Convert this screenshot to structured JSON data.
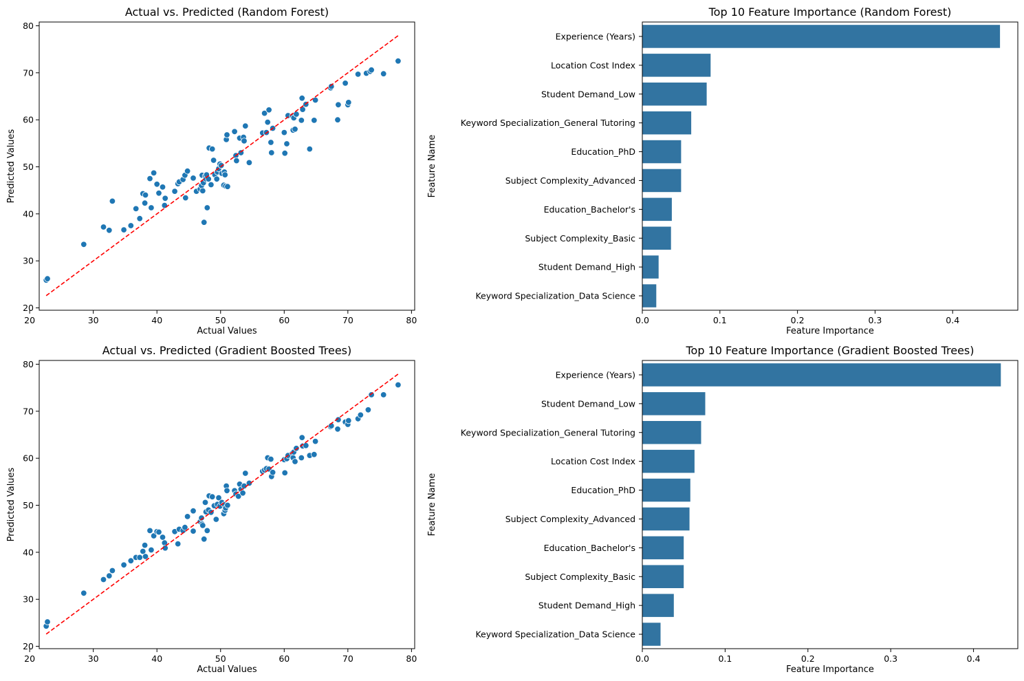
{
  "chart_data": [
    {
      "type": "scatter",
      "title": "Actual vs. Predicted (Random Forest)",
      "xlabel": "Actual Values",
      "ylabel": "Predicted Values",
      "xlim": [
        21.5,
        80.5
      ],
      "ylim": [
        19.5,
        80.8
      ],
      "xticks": [
        20,
        30,
        40,
        50,
        60,
        70,
        80
      ],
      "yticks": [
        20,
        30,
        40,
        50,
        60,
        70,
        80
      ],
      "color": "#1f77b4",
      "reference_line": {
        "x": [
          22.6,
          77.9
        ],
        "y": [
          22.6,
          77.9
        ],
        "color": "#ff0000",
        "style": "dashed"
      },
      "points": [
        [
          22.6,
          25.9
        ],
        [
          22.8,
          26.2
        ],
        [
          28.5,
          33.5
        ],
        [
          31.6,
          37.2
        ],
        [
          32.5,
          36.5
        ],
        [
          33.0,
          42.7
        ],
        [
          34.8,
          36.6
        ],
        [
          35.9,
          37.5
        ],
        [
          36.7,
          41.1
        ],
        [
          37.3,
          39.0
        ],
        [
          37.8,
          44.3
        ],
        [
          38.1,
          42.3
        ],
        [
          38.2,
          44.0
        ],
        [
          38.9,
          47.5
        ],
        [
          39.1,
          41.3
        ],
        [
          39.5,
          48.7
        ],
        [
          40.0,
          46.3
        ],
        [
          40.3,
          44.4
        ],
        [
          40.9,
          45.7
        ],
        [
          41.2,
          41.8
        ],
        [
          41.3,
          43.3
        ],
        [
          42.8,
          44.8
        ],
        [
          43.3,
          46.4
        ],
        [
          43.5,
          46.8
        ],
        [
          44.1,
          47.3
        ],
        [
          44.4,
          48.2
        ],
        [
          44.5,
          43.4
        ],
        [
          44.8,
          49.1
        ],
        [
          45.7,
          47.6
        ],
        [
          46.2,
          44.8
        ],
        [
          46.8,
          45.3
        ],
        [
          47.0,
          46.0
        ],
        [
          47.1,
          48.2
        ],
        [
          47.2,
          44.9
        ],
        [
          47.3,
          46.6
        ],
        [
          47.4,
          38.2
        ],
        [
          47.6,
          48.0
        ],
        [
          47.7,
          47.4
        ],
        [
          47.8,
          48.3
        ],
        [
          47.9,
          41.3
        ],
        [
          48.1,
          47.4
        ],
        [
          48.2,
          54.0
        ],
        [
          48.5,
          46.2
        ],
        [
          48.7,
          53.8
        ],
        [
          48.9,
          51.4
        ],
        [
          49.1,
          48.3
        ],
        [
          49.4,
          47.4
        ],
        [
          49.5,
          48.9
        ],
        [
          49.7,
          49.6
        ],
        [
          49.9,
          50.6
        ],
        [
          50.1,
          50.3
        ],
        [
          50.2,
          48.6
        ],
        [
          50.5,
          46.1
        ],
        [
          50.6,
          48.9
        ],
        [
          50.7,
          48.3
        ],
        [
          50.8,
          45.9
        ],
        [
          50.9,
          55.8
        ],
        [
          51.0,
          56.8
        ],
        [
          51.1,
          45.8
        ],
        [
          52.2,
          57.5
        ],
        [
          52.4,
          52.4
        ],
        [
          52.5,
          51.3
        ],
        [
          53.0,
          56.1
        ],
        [
          53.2,
          53.0
        ],
        [
          53.6,
          56.3
        ],
        [
          53.7,
          55.5
        ],
        [
          53.9,
          58.7
        ],
        [
          54.5,
          50.9
        ],
        [
          56.6,
          57.2
        ],
        [
          56.9,
          61.4
        ],
        [
          57.2,
          57.3
        ],
        [
          57.4,
          59.5
        ],
        [
          57.6,
          62.1
        ],
        [
          57.9,
          55.2
        ],
        [
          58.0,
          53.0
        ],
        [
          58.2,
          58.2
        ],
        [
          60.0,
          57.3
        ],
        [
          60.1,
          52.9
        ],
        [
          60.4,
          54.9
        ],
        [
          60.6,
          60.9
        ],
        [
          61.3,
          60.8
        ],
        [
          61.4,
          57.8
        ],
        [
          61.5,
          60.4
        ],
        [
          61.7,
          58.0
        ],
        [
          61.9,
          61.2
        ],
        [
          62.7,
          59.9
        ],
        [
          62.8,
          64.6
        ],
        [
          62.9,
          62.2
        ],
        [
          63.4,
          63.3
        ],
        [
          64.0,
          53.8
        ],
        [
          64.7,
          59.9
        ],
        [
          64.9,
          64.2
        ],
        [
          67.3,
          66.8
        ],
        [
          67.4,
          67.1
        ],
        [
          68.4,
          60.0
        ],
        [
          68.5,
          63.2
        ],
        [
          69.6,
          67.8
        ],
        [
          70.0,
          63.2
        ],
        [
          70.1,
          63.7
        ],
        [
          71.6,
          69.7
        ],
        [
          72.9,
          69.9
        ],
        [
          73.5,
          70.3
        ],
        [
          73.7,
          70.6
        ],
        [
          75.6,
          69.8
        ],
        [
          77.9,
          72.5
        ]
      ]
    },
    {
      "type": "bar",
      "orientation": "horizontal",
      "title": "Top 10 Feature Importance (Random Forest)",
      "xlabel": "Feature Importance",
      "ylabel": "Feature Name",
      "xlim": [
        0,
        0.484
      ],
      "xticks": [
        0.0,
        0.1,
        0.2,
        0.3,
        0.4
      ],
      "color": "#3274a1",
      "categories": [
        "Experience (Years)",
        "Location Cost Index",
        "Student Demand_Low",
        "Keyword Specialization_General Tutoring",
        "Education_PhD",
        "Subject Complexity_Advanced",
        "Education_Bachelor's",
        "Subject Complexity_Basic",
        "Student Demand_High",
        "Keyword Specialization_Data Science"
      ],
      "values": [
        0.461,
        0.088,
        0.083,
        0.063,
        0.05,
        0.05,
        0.038,
        0.037,
        0.021,
        0.018
      ]
    },
    {
      "type": "scatter",
      "title": "Actual vs. Predicted (Gradient Boosted Trees)",
      "xlabel": "Actual Values",
      "ylabel": "Predicted Values",
      "xlim": [
        21.5,
        80.5
      ],
      "ylim": [
        19.5,
        80.8
      ],
      "xticks": [
        20,
        30,
        40,
        50,
        60,
        70,
        80
      ],
      "yticks": [
        20,
        30,
        40,
        50,
        60,
        70,
        80
      ],
      "color": "#1f77b4",
      "reference_line": {
        "x": [
          22.6,
          77.9
        ],
        "y": [
          22.6,
          77.9
        ],
        "color": "#ff0000",
        "style": "dashed"
      },
      "points": [
        [
          22.6,
          24.3
        ],
        [
          22.8,
          25.2
        ],
        [
          28.5,
          31.3
        ],
        [
          31.6,
          34.2
        ],
        [
          32.5,
          35.0
        ],
        [
          33.0,
          36.1
        ],
        [
          34.8,
          37.3
        ],
        [
          35.9,
          38.2
        ],
        [
          36.7,
          38.9
        ],
        [
          37.3,
          38.9
        ],
        [
          37.8,
          40.2
        ],
        [
          38.1,
          41.5
        ],
        [
          38.2,
          39.1
        ],
        [
          38.9,
          44.6
        ],
        [
          39.1,
          40.5
        ],
        [
          39.5,
          43.5
        ],
        [
          40.0,
          44.4
        ],
        [
          40.3,
          44.3
        ],
        [
          40.9,
          43.2
        ],
        [
          41.2,
          42.0
        ],
        [
          41.3,
          40.9
        ],
        [
          42.8,
          44.4
        ],
        [
          43.3,
          41.8
        ],
        [
          43.5,
          44.9
        ],
        [
          44.1,
          44.6
        ],
        [
          44.4,
          45.3
        ],
        [
          44.8,
          47.6
        ],
        [
          45.7,
          48.8
        ],
        [
          45.7,
          44.5
        ],
        [
          46.8,
          46.5
        ],
        [
          47.0,
          47.3
        ],
        [
          47.1,
          46.0
        ],
        [
          47.2,
          45.7
        ],
        [
          47.4,
          42.8
        ],
        [
          47.6,
          50.6
        ],
        [
          47.7,
          48.6
        ],
        [
          47.9,
          44.6
        ],
        [
          48.1,
          49.0
        ],
        [
          48.2,
          52.0
        ],
        [
          48.5,
          48.5
        ],
        [
          48.7,
          51.8
        ],
        [
          49.0,
          49.9
        ],
        [
          49.3,
          47.0
        ],
        [
          49.5,
          50.2
        ],
        [
          49.7,
          51.6
        ],
        [
          49.9,
          49.8
        ],
        [
          50.2,
          50.6
        ],
        [
          50.5,
          48.2
        ],
        [
          50.6,
          50.1
        ],
        [
          50.7,
          48.9
        ],
        [
          50.8,
          49.4
        ],
        [
          50.9,
          54.1
        ],
        [
          51.0,
          53.1
        ],
        [
          51.1,
          50.0
        ],
        [
          52.2,
          53.1
        ],
        [
          52.4,
          52.4
        ],
        [
          52.8,
          51.9
        ],
        [
          53.0,
          54.5
        ],
        [
          53.2,
          53.4
        ],
        [
          53.5,
          52.6
        ],
        [
          53.7,
          54.1
        ],
        [
          53.9,
          56.8
        ],
        [
          54.5,
          54.7
        ],
        [
          56.6,
          57.2
        ],
        [
          56.9,
          57.5
        ],
        [
          57.2,
          57.8
        ],
        [
          57.4,
          60.1
        ],
        [
          57.6,
          57.7
        ],
        [
          57.9,
          59.8
        ],
        [
          58.0,
          56.1
        ],
        [
          58.2,
          57.0
        ],
        [
          60.0,
          59.7
        ],
        [
          60.1,
          56.9
        ],
        [
          60.4,
          59.9
        ],
        [
          60.6,
          60.6
        ],
        [
          61.3,
          61.1
        ],
        [
          61.4,
          60.1
        ],
        [
          61.5,
          61.3
        ],
        [
          61.7,
          59.3
        ],
        [
          61.9,
          62.1
        ],
        [
          62.7,
          60.1
        ],
        [
          62.8,
          64.4
        ],
        [
          62.9,
          62.6
        ],
        [
          63.4,
          62.7
        ],
        [
          64.0,
          60.6
        ],
        [
          64.7,
          60.8
        ],
        [
          64.9,
          63.6
        ],
        [
          67.3,
          66.7
        ],
        [
          67.4,
          66.9
        ],
        [
          68.4,
          66.2
        ],
        [
          68.5,
          68.2
        ],
        [
          69.6,
          67.7
        ],
        [
          70.0,
          67.2
        ],
        [
          70.1,
          68.0
        ],
        [
          71.6,
          68.4
        ],
        [
          72.0,
          69.2
        ],
        [
          73.2,
          70.3
        ],
        [
          73.7,
          73.5
        ],
        [
          75.6,
          73.5
        ],
        [
          77.9,
          75.6
        ]
      ]
    },
    {
      "type": "bar",
      "orientation": "horizontal",
      "title": "Top 10 Feature Importance (Gradient Boosted Trees)",
      "xlabel": "Feature Importance",
      "ylabel": "Feature Name",
      "xlim": [
        0,
        0.4535
      ],
      "xticks": [
        0.0,
        0.1,
        0.2,
        0.3,
        0.4
      ],
      "color": "#3274a1",
      "categories": [
        "Experience (Years)",
        "Student Demand_Low",
        "Keyword Specialization_General Tutoring",
        "Location Cost Index",
        "Education_PhD",
        "Subject Complexity_Advanced",
        "Education_Bachelor's",
        "Subject Complexity_Basic",
        "Student Demand_High",
        "Keyword Specialization_Data Science"
      ],
      "values": [
        0.433,
        0.076,
        0.071,
        0.063,
        0.058,
        0.057,
        0.05,
        0.05,
        0.038,
        0.022
      ]
    }
  ]
}
